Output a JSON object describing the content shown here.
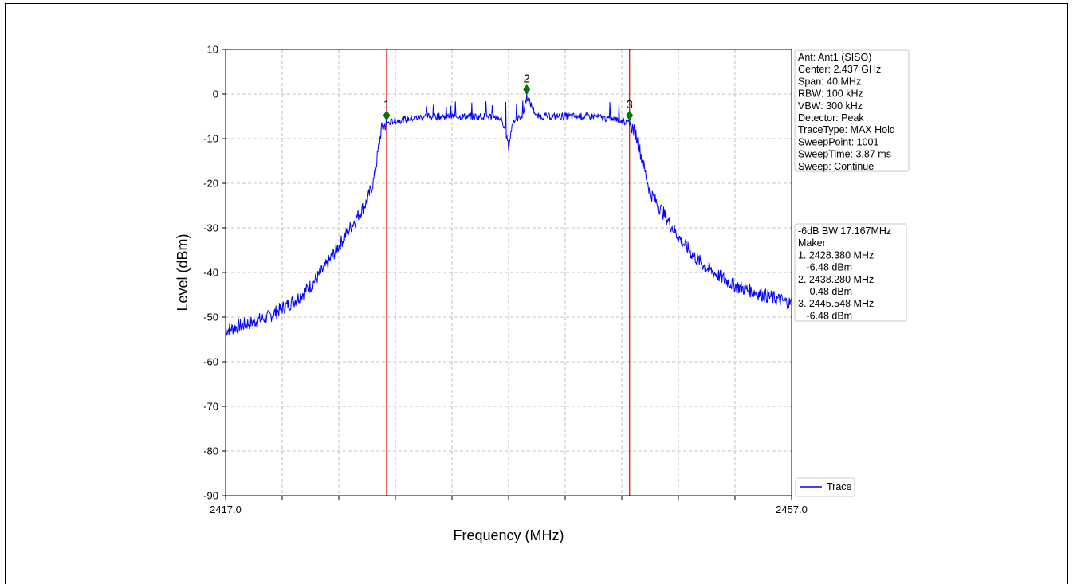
{
  "chart_data": {
    "type": "line",
    "xlabel": "Frequency (MHz)",
    "ylabel": "Level (dBm)",
    "xlim": [
      2417.0,
      2457.0
    ],
    "ylim": [
      -90,
      10
    ],
    "x_tick_labels": [
      "2417.0",
      "2457.0"
    ],
    "y_ticks": [
      10,
      0,
      -10,
      -20,
      -30,
      -40,
      -50,
      -60,
      -70,
      -80,
      -90
    ],
    "grid": true,
    "series": [
      {
        "name": "Trace",
        "color": "#0000ff",
        "x": [
          2417.0,
          2418.0,
          2419.0,
          2420.0,
          2421.0,
          2422.0,
          2423.0,
          2424.0,
          2425.0,
          2426.0,
          2427.0,
          2427.5,
          2428.0,
          2428.38,
          2429.0,
          2430.0,
          2431.0,
          2432.0,
          2433.0,
          2434.0,
          2435.0,
          2436.0,
          2436.5,
          2436.9,
          2437.0,
          2437.3,
          2438.0,
          2438.28,
          2439.0,
          2440.0,
          2441.0,
          2442.0,
          2443.0,
          2444.0,
          2445.0,
          2445.548,
          2446.0,
          2447.0,
          2448.0,
          2449.0,
          2450.0,
          2451.0,
          2452.0,
          2453.0,
          2454.0,
          2455.0,
          2456.0,
          2457.0
        ],
        "y": [
          -53,
          -52,
          -51,
          -50,
          -48,
          -46,
          -43,
          -39,
          -34,
          -29,
          -24,
          -19,
          -8,
          -6.48,
          -6,
          -5.5,
          -5,
          -5,
          -5,
          -5,
          -5,
          -5,
          -5.5,
          -10,
          -12,
          -6,
          -5,
          -0.48,
          -5,
          -5,
          -5,
          -5,
          -5,
          -5.5,
          -6,
          -6.48,
          -9,
          -22,
          -27,
          -32,
          -36,
          -39,
          -41,
          -43,
          -44,
          -45,
          -46,
          -47
        ]
      }
    ],
    "markers": [
      {
        "label": "1",
        "x": 2428.38,
        "y": -4.8
      },
      {
        "label": "2",
        "x": 2438.28,
        "y": 1.0
      },
      {
        "label": "3",
        "x": 2445.548,
        "y": -4.8
      }
    ],
    "vlines": [
      2428.38,
      2445.548
    ],
    "vline_color": "#e00000",
    "legend": {
      "label": "Trace",
      "position": "bottom-right"
    },
    "info_box": [
      "Ant: Ant1 (SISO)",
      "Center: 2.437 GHz",
      "Span: 40 MHz",
      "RBW: 100 kHz",
      "VBW: 300 kHz",
      "Detector: Peak",
      "TraceType: MAX Hold",
      "SweepPoint: 1001",
      "SweepTime: 3.87 ms",
      "Sweep: Continue"
    ],
    "bw_box": [
      "-6dB BW:17.167MHz",
      "Maker:",
      "1. 2428.380 MHz",
      "   -6.48 dBm",
      "2. 2438.280 MHz",
      "   -0.48 dBm",
      "3. 2445.548 MHz",
      "   -6.48 dBm"
    ]
  }
}
